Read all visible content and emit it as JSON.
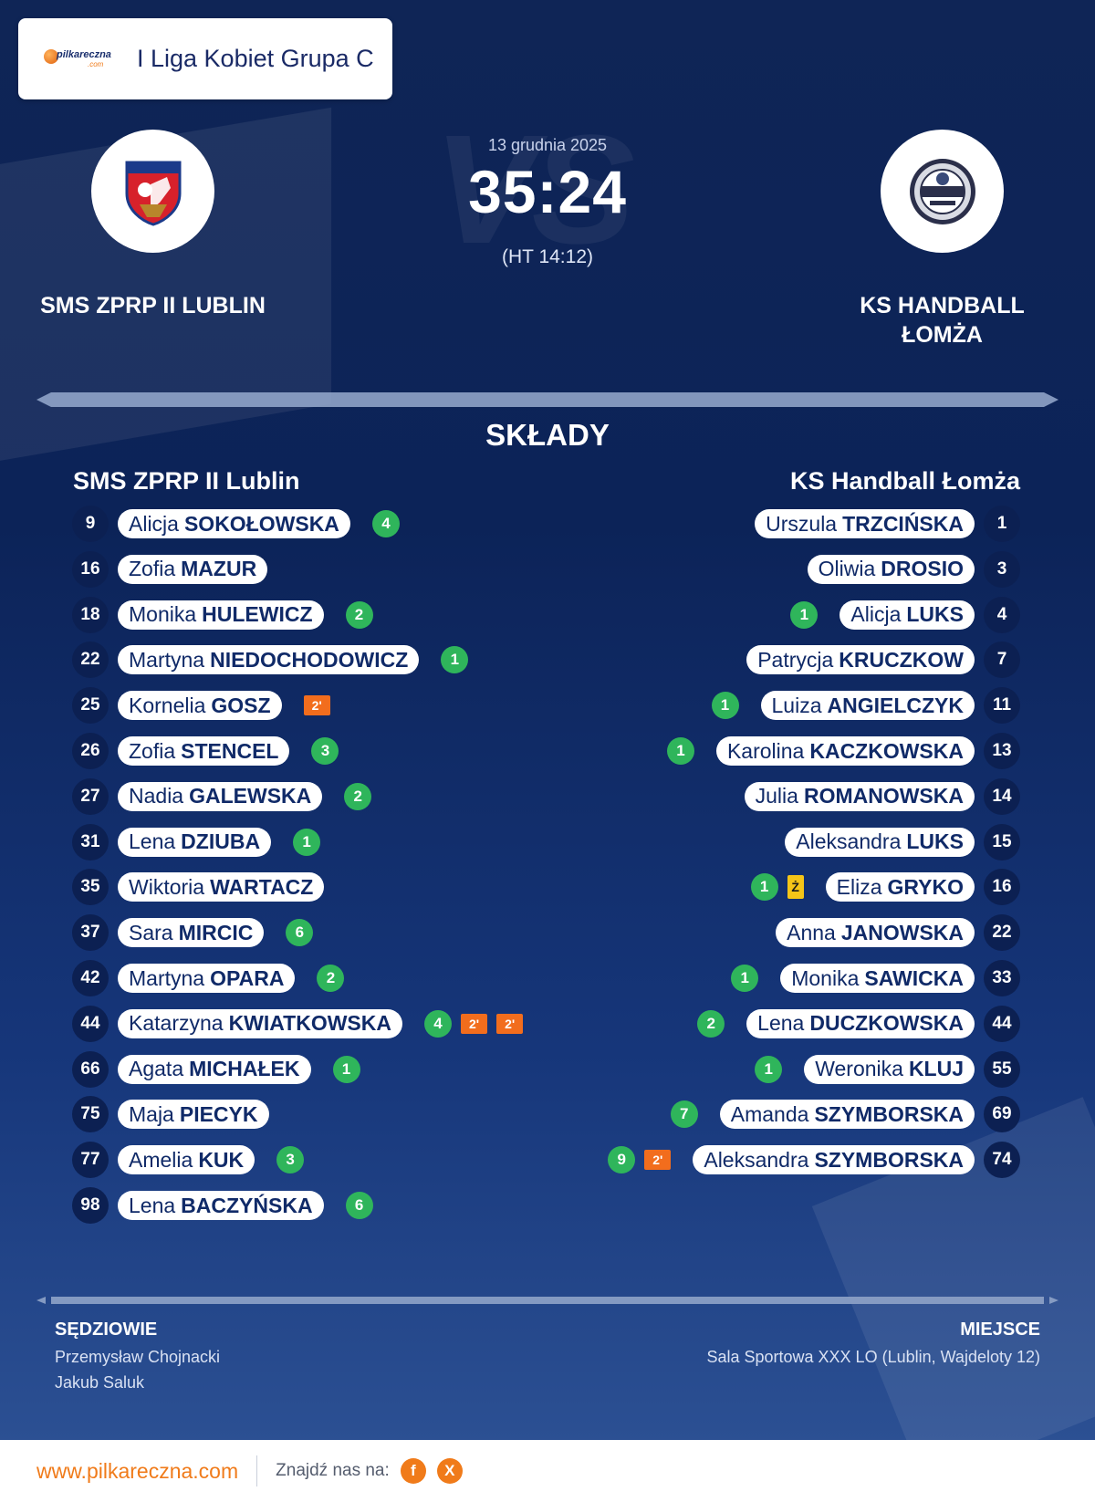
{
  "league": {
    "brand_word": "pilkareczna",
    "brand_suffix": ".com",
    "name": "I Liga Kobiet Grupa C"
  },
  "match": {
    "date": "13 grudnia 2025",
    "score": "35:24",
    "halftime": "(HT 14:12)",
    "vs_text": "VS"
  },
  "home": {
    "name_upper": "SMS ZPRP II LUBLIN",
    "name": "SMS ZPRP II Lublin",
    "crest_colors": [
      "#d7212b",
      "#1b3a8a",
      "#ffffff"
    ]
  },
  "away": {
    "name_upper_line1": "KS HANDBALL",
    "name_upper_line2": "ŁOMŻA",
    "name": "KS Handball Łomża"
  },
  "section_title": "SKŁADY",
  "home_players": [
    {
      "number": "9",
      "first": "Alicja",
      "last": "SOKOŁOWSKA",
      "goals": "4",
      "suspensions": [],
      "card": ""
    },
    {
      "number": "16",
      "first": "Zofia",
      "last": "MAZUR",
      "goals": "",
      "suspensions": [],
      "card": ""
    },
    {
      "number": "18",
      "first": "Monika",
      "last": "HULEWICZ",
      "goals": "2",
      "suspensions": [],
      "card": ""
    },
    {
      "number": "22",
      "first": "Martyna",
      "last": "NIEDOCHODOWICZ",
      "goals": "1",
      "suspensions": [],
      "card": ""
    },
    {
      "number": "25",
      "first": "Kornelia",
      "last": "GOSZ",
      "goals": "",
      "suspensions": [
        "2'"
      ],
      "card": ""
    },
    {
      "number": "26",
      "first": "Zofia",
      "last": "STENCEL",
      "goals": "3",
      "suspensions": [],
      "card": ""
    },
    {
      "number": "27",
      "first": "Nadia",
      "last": "GALEWSKA",
      "goals": "2",
      "suspensions": [],
      "card": ""
    },
    {
      "number": "31",
      "first": "Lena",
      "last": "DZIUBA",
      "goals": "1",
      "suspensions": [],
      "card": ""
    },
    {
      "number": "35",
      "first": "Wiktoria",
      "last": "WARTACZ",
      "goals": "",
      "suspensions": [],
      "card": ""
    },
    {
      "number": "37",
      "first": "Sara",
      "last": "MIRCIC",
      "goals": "6",
      "suspensions": [],
      "card": ""
    },
    {
      "number": "42",
      "first": "Martyna",
      "last": "OPARA",
      "goals": "2",
      "suspensions": [],
      "card": ""
    },
    {
      "number": "44",
      "first": "Katarzyna",
      "last": "KWIATKOWSKA",
      "goals": "4",
      "suspensions": [
        "2'",
        "2'"
      ],
      "card": ""
    },
    {
      "number": "66",
      "first": "Agata",
      "last": "MICHAŁEK",
      "goals": "1",
      "suspensions": [],
      "card": ""
    },
    {
      "number": "75",
      "first": "Maja",
      "last": "PIECYK",
      "goals": "",
      "suspensions": [],
      "card": ""
    },
    {
      "number": "77",
      "first": "Amelia",
      "last": "KUK",
      "goals": "3",
      "suspensions": [],
      "card": ""
    },
    {
      "number": "98",
      "first": "Lena",
      "last": "BACZYŃSKA",
      "goals": "6",
      "suspensions": [],
      "card": ""
    }
  ],
  "away_players": [
    {
      "number": "1",
      "first": "Urszula",
      "last": "TRZCIŃSKA",
      "goals": "",
      "suspensions": [],
      "card": ""
    },
    {
      "number": "3",
      "first": "Oliwia",
      "last": "DROSIO",
      "goals": "",
      "suspensions": [],
      "card": ""
    },
    {
      "number": "4",
      "first": "Alicja",
      "last": "LUKS",
      "goals": "1",
      "suspensions": [],
      "card": ""
    },
    {
      "number": "7",
      "first": "Patrycja",
      "last": "KRUCZKOW",
      "goals": "",
      "suspensions": [],
      "card": ""
    },
    {
      "number": "11",
      "first": "Luiza",
      "last": "ANGIELCZYK",
      "goals": "1",
      "suspensions": [],
      "card": ""
    },
    {
      "number": "13",
      "first": "Karolina",
      "last": "KACZKOWSKA",
      "goals": "1",
      "suspensions": [],
      "card": ""
    },
    {
      "number": "14",
      "first": "Julia",
      "last": "ROMANOWSKA",
      "goals": "",
      "suspensions": [],
      "card": ""
    },
    {
      "number": "15",
      "first": "Aleksandra",
      "last": "LUKS",
      "goals": "",
      "suspensions": [],
      "card": ""
    },
    {
      "number": "16",
      "first": "Eliza",
      "last": "GRYKO",
      "goals": "1",
      "suspensions": [],
      "card": "Ż"
    },
    {
      "number": "22",
      "first": "Anna",
      "last": "JANOWSKA",
      "goals": "",
      "suspensions": [],
      "card": ""
    },
    {
      "number": "33",
      "first": "Monika",
      "last": "SAWICKA",
      "goals": "1",
      "suspensions": [],
      "card": ""
    },
    {
      "number": "44",
      "first": "Lena",
      "last": "DUCZKOWSKA",
      "goals": "2",
      "suspensions": [],
      "card": ""
    },
    {
      "number": "55",
      "first": "Weronika",
      "last": "KLUJ",
      "goals": "1",
      "suspensions": [],
      "card": ""
    },
    {
      "number": "69",
      "first": "Amanda",
      "last": "SZYMBORSKA",
      "goals": "7",
      "suspensions": [],
      "card": ""
    },
    {
      "number": "74",
      "first": "Aleksandra",
      "last": "SZYMBORSKA",
      "goals": "9",
      "suspensions": [
        "2'"
      ],
      "card": ""
    }
  ],
  "referees": {
    "title": "SĘDZIOWIE",
    "names": [
      "Przemysław Chojnacki",
      "Jakub Saluk"
    ]
  },
  "venue": {
    "title": "MIEJSCE",
    "text": "Sala Sportowa XXX LO (Lublin, Wajdeloty 12)"
  },
  "footer": {
    "url": "www.pilkareczna.com",
    "find_label": "Znajdź nas na:",
    "social": [
      {
        "icon": "facebook-icon",
        "glyph": "f"
      },
      {
        "icon": "x-icon",
        "glyph": "X"
      }
    ]
  },
  "colors": {
    "goal_badge": "#2fb55b",
    "suspension_badge": "#f26d1d",
    "yellow_card": "#f5c518",
    "accent": "#f07b1a"
  }
}
